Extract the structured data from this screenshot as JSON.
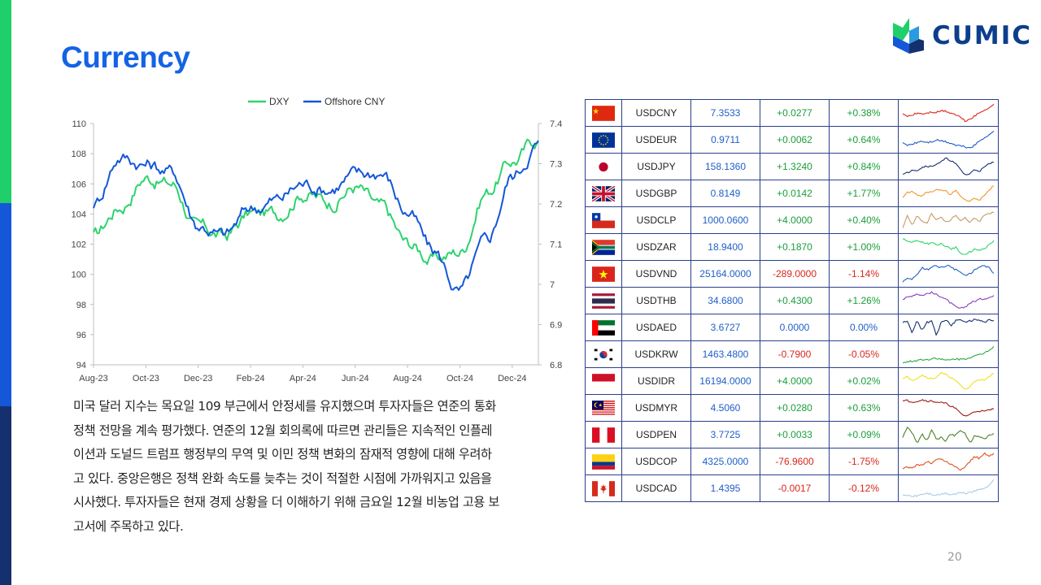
{
  "slide": {
    "title": "Currency",
    "page_number": "20",
    "brand": "CUMIC"
  },
  "body_lines": [
    "미국 달러 지수는 목요일 109 부근에서 안정세를 유지했으며 투자자들은 연준의 통화",
    "정책 전망을 계속 평가했다. 연준의 12월 회의록에 따르면 관리들은 지속적인 인플레",
    "이션과 도널드 트럼프 행정부의 무역 및 이민 정책 변화의 잠재적 영향에 대해 우려하",
    "고 있다. 중앙은행은 정책 완화 속도를 늦추는 것이 적절한 시점에 가까워지고 있음을",
    "시사했다. 투자자들은 현재 경제 상황을 더 이해하기 위해 금요일 12월 비농업 고용 보",
    "고서에 주목하고 있다."
  ],
  "chart_data": {
    "type": "line",
    "x": [
      "Aug-23",
      "Sep-23",
      "Oct-23",
      "Nov-23",
      "Dec-23",
      "Jan-24",
      "Feb-24",
      "Mar-24",
      "Apr-24",
      "May-24",
      "Jun-24",
      "Jul-24",
      "Aug-24",
      "Sep-24",
      "Oct-24",
      "Nov-24",
      "Dec-24",
      "Jan-25"
    ],
    "x_tick_labels": [
      "Aug-23",
      "Oct-23",
      "Dec-23",
      "Feb-24",
      "Apr-24",
      "Jun-24",
      "Aug-24",
      "Oct-24",
      "Dec-24"
    ],
    "series": [
      {
        "name": "DXY",
        "axis": "left",
        "color": "#2ed36e",
        "values": [
          102.5,
          104.5,
          106.5,
          106.0,
          103.0,
          102.5,
          104.0,
          104.0,
          105.5,
          104.8,
          105.8,
          104.3,
          102.0,
          101.0,
          101.5,
          105.5,
          107.5,
          109.0
        ]
      },
      {
        "name": "Offshore CNY",
        "axis": "right",
        "color": "#1457d9",
        "values": [
          7.2,
          7.32,
          7.3,
          7.28,
          7.15,
          7.12,
          7.19,
          7.21,
          7.25,
          7.24,
          7.27,
          7.28,
          7.18,
          7.08,
          6.98,
          7.1,
          7.27,
          7.35
        ]
      }
    ],
    "y_left": {
      "range": [
        94,
        110
      ],
      "ticks": [
        94,
        96,
        98,
        100,
        102,
        104,
        106,
        108,
        110
      ]
    },
    "y_right": {
      "range": [
        6.8,
        7.4
      ],
      "ticks": [
        "6.8",
        "6.9",
        "7",
        "7.1",
        "7.2",
        "7.3",
        "7.4"
      ]
    },
    "legend_position": "top-center",
    "grid": false
  },
  "fx_table": [
    {
      "flag": "cn",
      "symbol": "USDCNY",
      "price": "7.3533",
      "change": "+0.0277",
      "pct": "+0.38%",
      "dir": "pos",
      "spark_color": "#d9261c",
      "spark": [
        5,
        4.5,
        4.8,
        5.5,
        5.2,
        5.4,
        5.8,
        5.6,
        6.2,
        6.0,
        5.5,
        5.0,
        4.2,
        3.0,
        3.6,
        4.5,
        5.5,
        6.4,
        7.2,
        8
      ]
    },
    {
      "flag": "eu",
      "symbol": "USDEUR",
      "price": "0.9711",
      "change": "+0.0062",
      "pct": "+0.64%",
      "dir": "pos",
      "spark_color": "#1f5fc8",
      "spark": [
        4.5,
        4,
        4.3,
        4.8,
        5.2,
        4.8,
        5,
        5.5,
        5.3,
        5.0,
        4.6,
        4.0,
        3.8,
        3.5,
        3.2,
        4.0,
        5.2,
        6.2,
        7.2,
        8
      ]
    },
    {
      "flag": "jp",
      "symbol": "USDJPY",
      "price": "158.1360",
      "change": "+1.3240",
      "pct": "+0.84%",
      "dir": "pos",
      "spark_color": "#14306e",
      "spark": [
        3,
        3.5,
        4.5,
        4.2,
        5,
        5.5,
        5.2,
        6,
        6.5,
        7.5,
        7,
        6,
        4.5,
        3,
        3.2,
        4.5,
        4,
        5,
        6,
        6.5
      ]
    },
    {
      "flag": "gb",
      "symbol": "USDGBP",
      "price": "0.8149",
      "change": "+0.0142",
      "pct": "+1.77%",
      "dir": "pos",
      "spark_color": "#f0962a",
      "spark": [
        4,
        5.5,
        6,
        5,
        4.5,
        5.8,
        5.5,
        6.5,
        6,
        5.8,
        5,
        6,
        4.5,
        3.5,
        3,
        4,
        3.5,
        4.5,
        6,
        7.5
      ]
    },
    {
      "flag": "cl",
      "symbol": "USDCLP",
      "price": "1000.0600",
      "change": "+4.0000",
      "pct": "+0.40%",
      "dir": "pos",
      "spark_color": "#c99a6a",
      "spark": [
        3,
        6.5,
        4,
        6.8,
        5,
        4.5,
        7,
        5.5,
        6,
        4.5,
        5.5,
        6.5,
        5,
        6,
        4.5,
        6,
        5,
        6.5,
        7,
        7.5
      ]
    },
    {
      "flag": "za",
      "symbol": "USDZAR",
      "price": "18.9400",
      "change": "+0.1870",
      "pct": "+1.00%",
      "dir": "pos",
      "spark_color": "#2ed36e",
      "spark": [
        7,
        6.5,
        6,
        6.8,
        6.2,
        5.8,
        6,
        5.5,
        5.8,
        5.2,
        4.5,
        5,
        3.5,
        3,
        3.8,
        4.5,
        4,
        4.5,
        5.5,
        6.5
      ]
    },
    {
      "flag": "vn",
      "symbol": "USDVND",
      "price": "25164.0000",
      "change": "-289.0000",
      "pct": "-1.14%",
      "dir": "neg",
      "spark_color": "#1f5fc8",
      "spark": [
        3,
        4,
        3.5,
        5,
        6.5,
        6,
        6.5,
        7,
        6.5,
        7,
        6.8,
        6,
        5.5,
        4.5,
        5,
        6,
        6.5,
        7,
        6.5,
        5
      ]
    },
    {
      "flag": "th",
      "symbol": "USDTHB",
      "price": "34.6800",
      "change": "+0.4300",
      "pct": "+1.26%",
      "dir": "pos",
      "spark_color": "#8a3fc0",
      "spark": [
        5,
        5.5,
        6,
        6.5,
        6,
        6.5,
        6.8,
        6.2,
        5.8,
        5,
        4,
        3,
        2.5,
        3,
        4,
        4.5,
        5,
        5.2,
        5.5,
        5.8
      ]
    },
    {
      "flag": "ae",
      "symbol": "USDAED",
      "price": "3.6727",
      "change": "0.0000",
      "pct": "0.00%",
      "dir": "neu",
      "spark_color": "#14306e",
      "spark": [
        6,
        6.5,
        2.5,
        7,
        3.5,
        6,
        6.5,
        2,
        6,
        7,
        5,
        6.5,
        7,
        6,
        6.5,
        7,
        6.5,
        6,
        6.8,
        6.5
      ]
    },
    {
      "flag": "kr",
      "symbol": "USDKRW",
      "price": "1463.4800",
      "change": "-0.7900",
      "pct": "-0.05%",
      "dir": "neg",
      "spark_color": "#2aa84a",
      "spark": [
        2,
        2.2,
        2.5,
        2.8,
        3.2,
        3,
        3.5,
        3.8,
        3.2,
        2.8,
        3,
        3.5,
        3.2,
        3.5,
        4,
        4.5,
        5,
        5.8,
        7,
        8.5
      ]
    },
    {
      "flag": "id",
      "symbol": "USDIDR",
      "price": "16194.0000",
      "change": "+4.0000",
      "pct": "+0.02%",
      "dir": "pos",
      "spark_color": "#f0e020",
      "spark": [
        6,
        6.5,
        5.8,
        6.2,
        7,
        6.5,
        6,
        6.5,
        7.5,
        7,
        6.5,
        5.5,
        4.5,
        3.5,
        4,
        5.5,
        6,
        5.5,
        6.5,
        7.5
      ]
    },
    {
      "flag": "my",
      "symbol": "USDMYR",
      "price": "4.5060",
      "change": "+0.0280",
      "pct": "+0.63%",
      "dir": "pos",
      "spark_color": "#a01818",
      "spark": [
        7,
        7.2,
        6.8,
        7,
        7.5,
        7.2,
        7,
        6.8,
        6.5,
        6.2,
        5.5,
        4.5,
        3,
        2,
        2.5,
        3.5,
        3.8,
        3.5,
        4,
        4.5
      ]
    },
    {
      "flag": "pe",
      "symbol": "USDPEN",
      "price": "3.7725",
      "change": "+0.0033",
      "pct": "+0.09%",
      "dir": "pos",
      "spark_color": "#4f7f2a",
      "spark": [
        4,
        7,
        5,
        2.5,
        5,
        3,
        6,
        3.5,
        4,
        3,
        5,
        4.5,
        6,
        5,
        2.5,
        4.5,
        4,
        3.5,
        4.5,
        5
      ]
    },
    {
      "flag": "co",
      "symbol": "USDCOP",
      "price": "4325.0000",
      "change": "-76.9600",
      "pct": "-1.75%",
      "dir": "neg",
      "spark_color": "#e0521c",
      "spark": [
        3,
        3.5,
        3.2,
        4,
        3.8,
        4.5,
        4.2,
        4.8,
        5,
        4.5,
        4,
        3.5,
        3,
        3.5,
        4.5,
        5.5,
        5,
        6,
        5.5,
        6
      ]
    },
    {
      "flag": "ca",
      "symbol": "USDCAD",
      "price": "1.4395",
      "change": "-0.0017",
      "pct": "-0.12%",
      "dir": "neg",
      "spark_color": "#a8cbe8",
      "spark": [
        3,
        3.2,
        2.8,
        3,
        3.5,
        3.8,
        3.5,
        3.2,
        3.5,
        3.8,
        3.4,
        3.6,
        4,
        3.8,
        4.2,
        4.5,
        5,
        5.5,
        6.5,
        8
      ]
    }
  ]
}
